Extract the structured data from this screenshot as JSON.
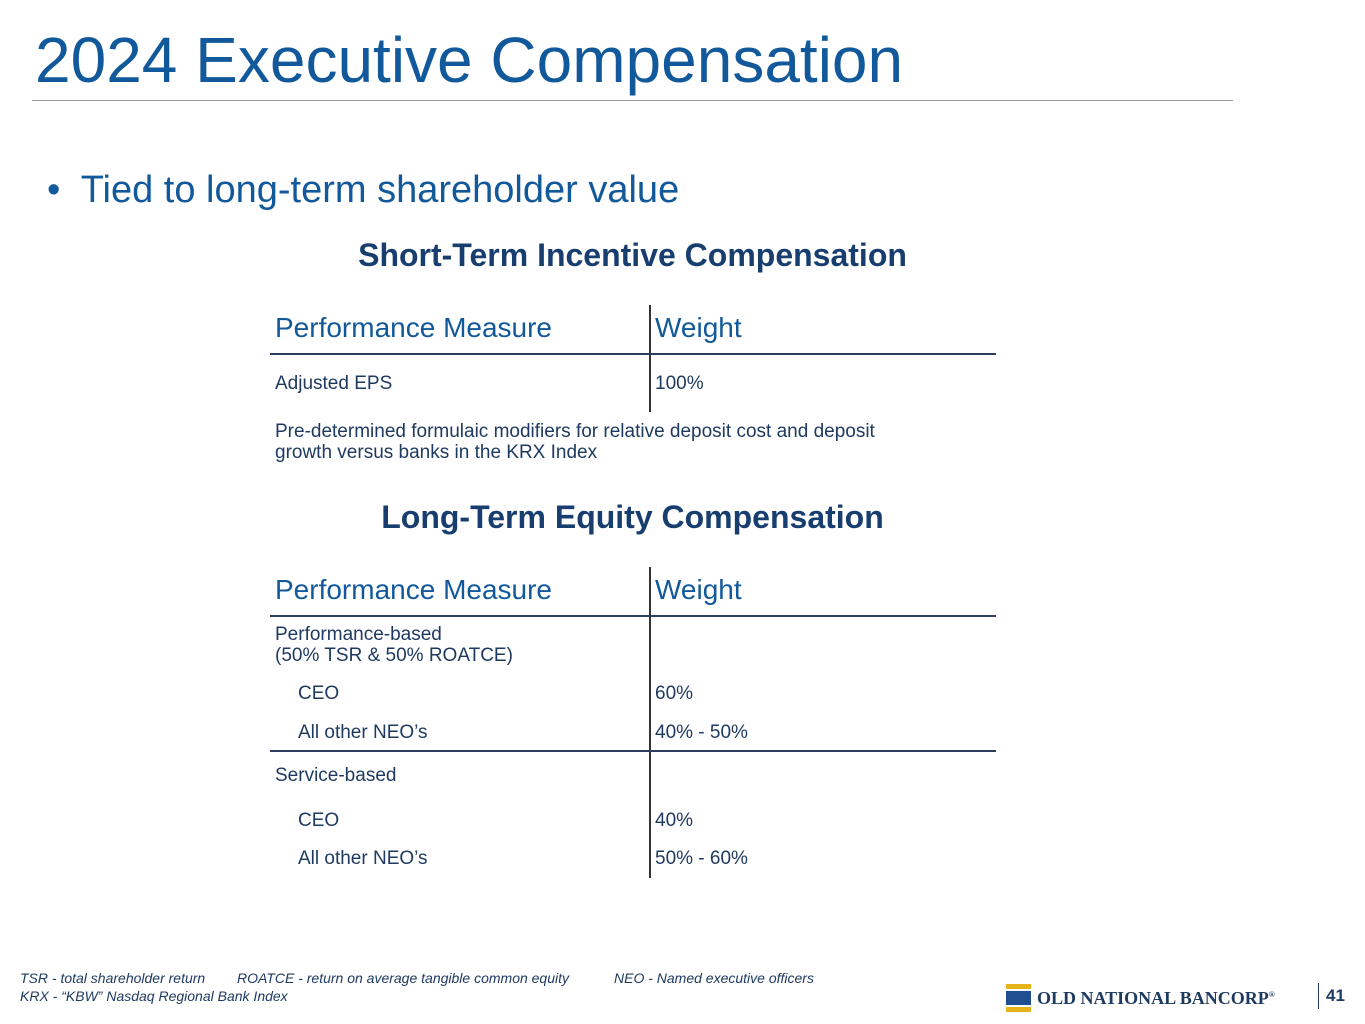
{
  "header": {
    "title": "2024 Executive Compensation"
  },
  "bullet": "Tied to long-term shareholder value",
  "short_term": {
    "heading": "Short-Term Incentive Compensation",
    "columns": [
      "Performance Measure",
      "Weight"
    ],
    "rows": [
      [
        "Adjusted EPS",
        "100%"
      ]
    ],
    "note": [
      "Pre-determined formulaic modifiers for relative deposit cost and deposit",
      "growth versus banks in the KRX Index"
    ]
  },
  "long_term": {
    "heading": "Long-Term Equity Compensation",
    "columns": [
      "Performance Measure",
      "Weight"
    ],
    "groups": [
      {
        "label": [
          "Performance-based",
          "(50% TSR & 50% ROATCE)"
        ],
        "rows": [
          [
            "CEO",
            "60%"
          ],
          [
            "All other NEO’s",
            "40% - 50%"
          ]
        ]
      },
      {
        "label": [
          "Service-based"
        ],
        "rows": [
          [
            "CEO",
            "40%"
          ],
          [
            "All other NEO’s",
            "50% - 60%"
          ]
        ]
      }
    ]
  },
  "footnotes": {
    "line1": [
      "TSR - total shareholder return",
      "ROATCE - return on average tangible common equity",
      "NEO - Named executive officers"
    ],
    "line2": "KRX - “KBW” Nasdaq Regional Bank Index"
  },
  "footer": {
    "logo": "OLD NATIONAL BANCORP",
    "registered": "®",
    "page": "41"
  }
}
